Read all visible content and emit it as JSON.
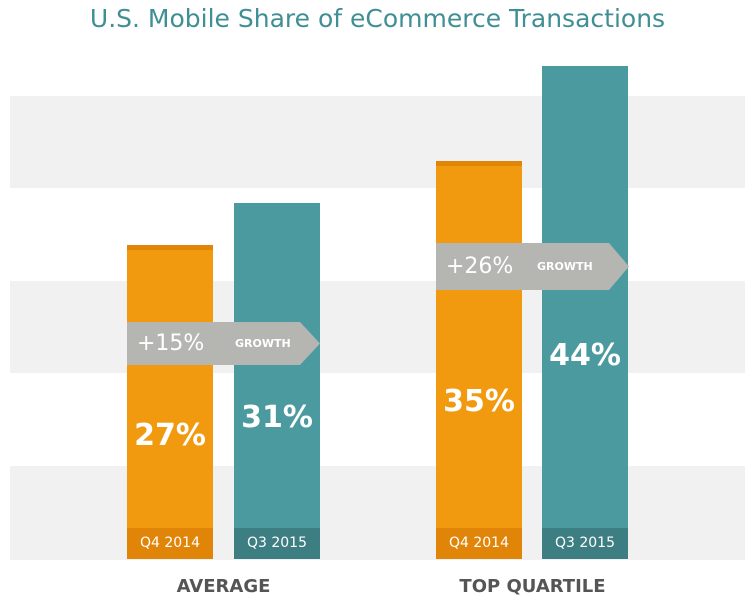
{
  "title": "U.S. Mobile Share of eCommerce Transactions",
  "colors": {
    "title": "#3f8f94",
    "q4": "#f29a0f",
    "q4_cap": "#e08508",
    "q3": "#4b9aa0",
    "q3_cap": "#3d7e82",
    "arrow": "#b5b5b2",
    "band": "#f1f1f1"
  },
  "chart_data": {
    "type": "bar",
    "categories": [
      "AVERAGE",
      "TOP QUARTILE"
    ],
    "series": [
      {
        "name": "Q4 2014",
        "values": [
          27,
          35
        ],
        "labels": [
          "27%",
          "35%"
        ]
      },
      {
        "name": "Q3 2015",
        "values": [
          31,
          44
        ],
        "labels": [
          "31%",
          "44%"
        ]
      }
    ],
    "growth": [
      {
        "percent": "+15%",
        "label": "GROWTH"
      },
      {
        "percent": "+26%",
        "label": "GROWTH"
      }
    ],
    "ylim": [
      0,
      50
    ],
    "grid": "alternating bands"
  }
}
